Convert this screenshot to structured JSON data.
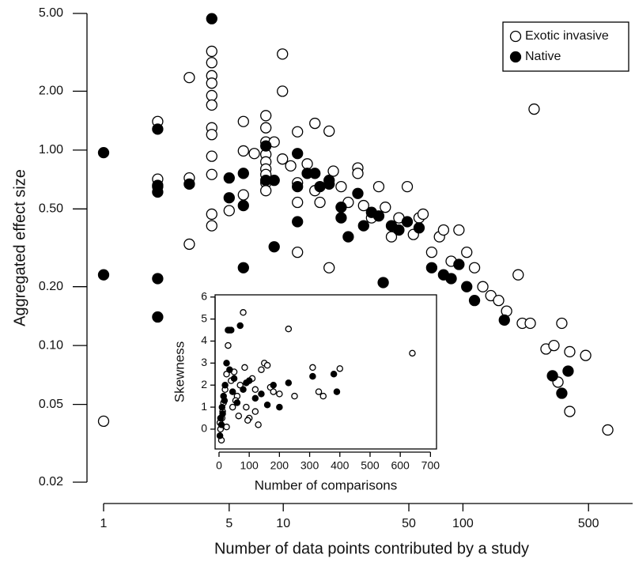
{
  "chart_data": [
    {
      "type": "scatter",
      "xlabel": "Number of data points contributed by a study",
      "ylabel": "Aggregated effect size",
      "xscale": "log",
      "yscale": "log",
      "xlim": [
        1,
        880
      ],
      "ylim": [
        0.02,
        5
      ],
      "xticks": [
        1,
        5,
        10,
        50,
        100,
        500
      ],
      "yticks": [
        {
          "value": 5,
          "label": "5.00"
        },
        {
          "value": 2,
          "label": "2.00"
        },
        {
          "value": 1,
          "label": "1.00"
        },
        {
          "value": 0.5,
          "label": "0.50"
        },
        {
          "value": 0.2,
          "label": "0.20"
        },
        {
          "value": 0.1,
          "label": "0.10"
        },
        0.05,
        0.02
      ],
      "legend": "upper right",
      "series": [
        {
          "name": "Exotic invasive",
          "color": "#000000",
          "marker": "open",
          "x": [
            1,
            2,
            2,
            2,
            3,
            3,
            3,
            4,
            4,
            4,
            4,
            4,
            4,
            4,
            4,
            4,
            4,
            4,
            4,
            5,
            6,
            6,
            6,
            6.9,
            8,
            8,
            8,
            8,
            8,
            8,
            8,
            8,
            8,
            8.9,
            9.9,
            9.9,
            9.9,
            11,
            12,
            12,
            12,
            12,
            13.6,
            15,
            15,
            16,
            18,
            18,
            19,
            21,
            23,
            26,
            26,
            28,
            31,
            34,
            37,
            40,
            44,
            49,
            53,
            57,
            60,
            67,
            74,
            78,
            86,
            95,
            105,
            116,
            129,
            143,
            158,
            175,
            203,
            214,
            237,
            249,
            290,
            321,
            355,
            393,
            482,
            640,
            393,
            338
          ],
          "values": [
            0.041,
            1.4,
            0.71,
            0.65,
            2.35,
            0.72,
            0.33,
            3.2,
            2.8,
            2.4,
            2.2,
            1.9,
            1.7,
            1.3,
            1.2,
            0.93,
            0.75,
            0.47,
            0.41,
            0.49,
            1.4,
            0.99,
            0.59,
            0.96,
            1.5,
            1.3,
            1.1,
            0.95,
            0.87,
            0.8,
            0.75,
            0.68,
            0.62,
            1.1,
            3.1,
            2.0,
            0.9,
            0.83,
            1.24,
            0.68,
            0.54,
            0.3,
            0.85,
            1.37,
            0.62,
            0.54,
            1.25,
            0.25,
            0.78,
            0.65,
            0.54,
            0.81,
            0.76,
            0.52,
            0.45,
            0.65,
            0.51,
            0.36,
            0.45,
            0.65,
            0.37,
            0.45,
            0.47,
            0.3,
            0.36,
            0.39,
            0.27,
            0.39,
            0.3,
            0.25,
            0.2,
            0.18,
            0.17,
            0.15,
            0.23,
            0.13,
            0.13,
            1.62,
            0.096,
            0.1,
            0.13,
            0.093,
            0.089,
            0.037,
            0.046,
            0.065
          ]
        },
        {
          "name": "Native",
          "color": "#000000",
          "marker": "filled",
          "x": [
            1,
            1,
            2,
            2,
            2,
            2,
            2,
            3,
            4,
            5,
            5,
            6,
            6,
            6,
            8,
            8,
            8.9,
            8.9,
            12,
            12,
            12,
            13.6,
            15,
            16,
            18,
            18,
            21,
            21,
            23,
            26,
            28,
            31,
            34,
            36,
            40,
            44,
            49,
            57,
            67,
            78,
            86,
            95,
            105,
            116,
            170,
            315,
            355,
            385
          ],
          "values": [
            0.97,
            0.23,
            1.28,
            0.66,
            0.61,
            0.22,
            0.14,
            0.67,
            4.7,
            0.72,
            0.57,
            0.76,
            0.52,
            0.25,
            1.05,
            0.7,
            0.7,
            0.32,
            0.96,
            0.65,
            0.43,
            0.76,
            0.76,
            0.65,
            0.67,
            0.7,
            0.51,
            0.45,
            0.36,
            0.6,
            0.41,
            0.48,
            0.46,
            0.21,
            0.41,
            0.39,
            0.43,
            0.4,
            0.25,
            0.23,
            0.22,
            0.26,
            0.2,
            0.17,
            0.135,
            0.07,
            0.057,
            0.074
          ]
        }
      ]
    },
    {
      "type": "scatter",
      "xlabel": "Number of comparisons",
      "ylabel": "Skewness",
      "xlim": [
        -13,
        720
      ],
      "ylim": [
        -0.9,
        6.1
      ],
      "xticks": [
        0,
        100,
        200,
        300,
        400,
        500,
        600,
        700
      ],
      "yticks": [
        0,
        1,
        2,
        3,
        4,
        5,
        6
      ],
      "series": [
        {
          "color": "#000000",
          "marker": "open",
          "x": [
            10,
            15,
            20,
            25,
            30,
            35,
            40,
            50,
            60,
            70,
            80,
            85,
            90,
            100,
            110,
            120,
            130,
            140,
            150,
            160,
            170,
            180,
            200,
            230,
            250,
            310,
            330,
            345,
            400,
            640,
            5,
            8,
            12,
            3,
            45,
            55,
            120,
            95,
            25,
            65
          ],
          "values": [
            0.5,
            1.2,
            1.8,
            2.5,
            3.8,
            4.5,
            2.2,
            2.6,
            1.5,
            2.0,
            5.3,
            2.8,
            1.0,
            0.5,
            2.3,
            1.8,
            0.2,
            2.7,
            3.0,
            2.9,
            1.9,
            1.7,
            1.6,
            4.55,
            1.5,
            2.8,
            1.7,
            1.5,
            2.75,
            3.45,
            0,
            -0.5,
            0.8,
            0.3,
            1.0,
            1.3,
            0.8,
            0.4,
            0.1,
            0.6
          ]
        },
        {
          "color": "#000000",
          "marker": "filled",
          "x": [
            5,
            10,
            15,
            20,
            25,
            30,
            40,
            70,
            50,
            60,
            80,
            100,
            120,
            140,
            160,
            180,
            200,
            230,
            310,
            380,
            390,
            3,
            8,
            12,
            18,
            35,
            45,
            90
          ],
          "values": [
            0.5,
            1.0,
            1.5,
            2.0,
            3.0,
            4.5,
            4.5,
            4.7,
            2.3,
            1.2,
            1.8,
            2.2,
            1.4,
            1.6,
            1.1,
            2.0,
            1.0,
            2.1,
            2.4,
            2.5,
            1.7,
            -0.3,
            0.2,
            0.7,
            1.3,
            2.7,
            1.7,
            2.1
          ]
        }
      ]
    }
  ]
}
